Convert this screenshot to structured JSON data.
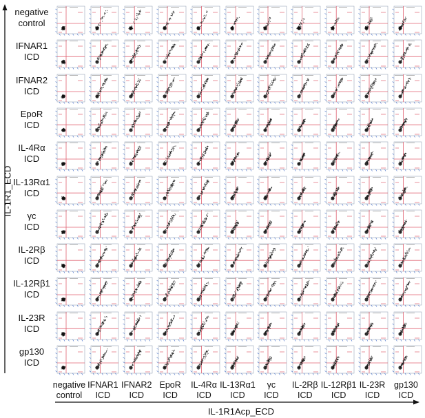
{
  "figure": {
    "x_axis_title": "IL-1R1Acp_ECD",
    "y_axis_title": "IL-1R1_ECD",
    "row_labels": [
      [
        "negative",
        "control"
      ],
      [
        "IFNAR1",
        "ICD"
      ],
      [
        "IFNAR2",
        "ICD"
      ],
      [
        "EpoR",
        "ICD"
      ],
      [
        "IL-4Rα",
        "ICD"
      ],
      [
        "IL-13Rα1",
        "ICD"
      ],
      [
        "γc",
        "ICD"
      ],
      [
        "IL-2Rβ",
        "ICD"
      ],
      [
        "IL-12Rβ1",
        "ICD"
      ],
      [
        "IL-23R",
        "ICD"
      ],
      [
        "gp130",
        "ICD"
      ]
    ],
    "col_labels": [
      [
        "negative",
        "control"
      ],
      [
        "IFNAR1",
        "ICD"
      ],
      [
        "IFNAR2",
        "ICD"
      ],
      [
        "EpoR",
        "ICD"
      ],
      [
        "IL-4Rα",
        "ICD"
      ],
      [
        "IL-13Rα1",
        "ICD"
      ],
      [
        "γc",
        "ICD"
      ],
      [
        "IL-2Rβ",
        "ICD"
      ],
      [
        "IL-12Rβ1",
        "ICD"
      ],
      [
        "IL-23R",
        "ICD"
      ],
      [
        "gp130",
        "ICD"
      ]
    ],
    "colors": {
      "gate": "#e06070",
      "axis_ticks": "#4a74c9",
      "dots": "#111111",
      "text": "#111111"
    },
    "panel_grid": {
      "rows": 11,
      "columns": 11,
      "plot_type": "flow cytometry density dot plot with quadrant gates"
    }
  }
}
